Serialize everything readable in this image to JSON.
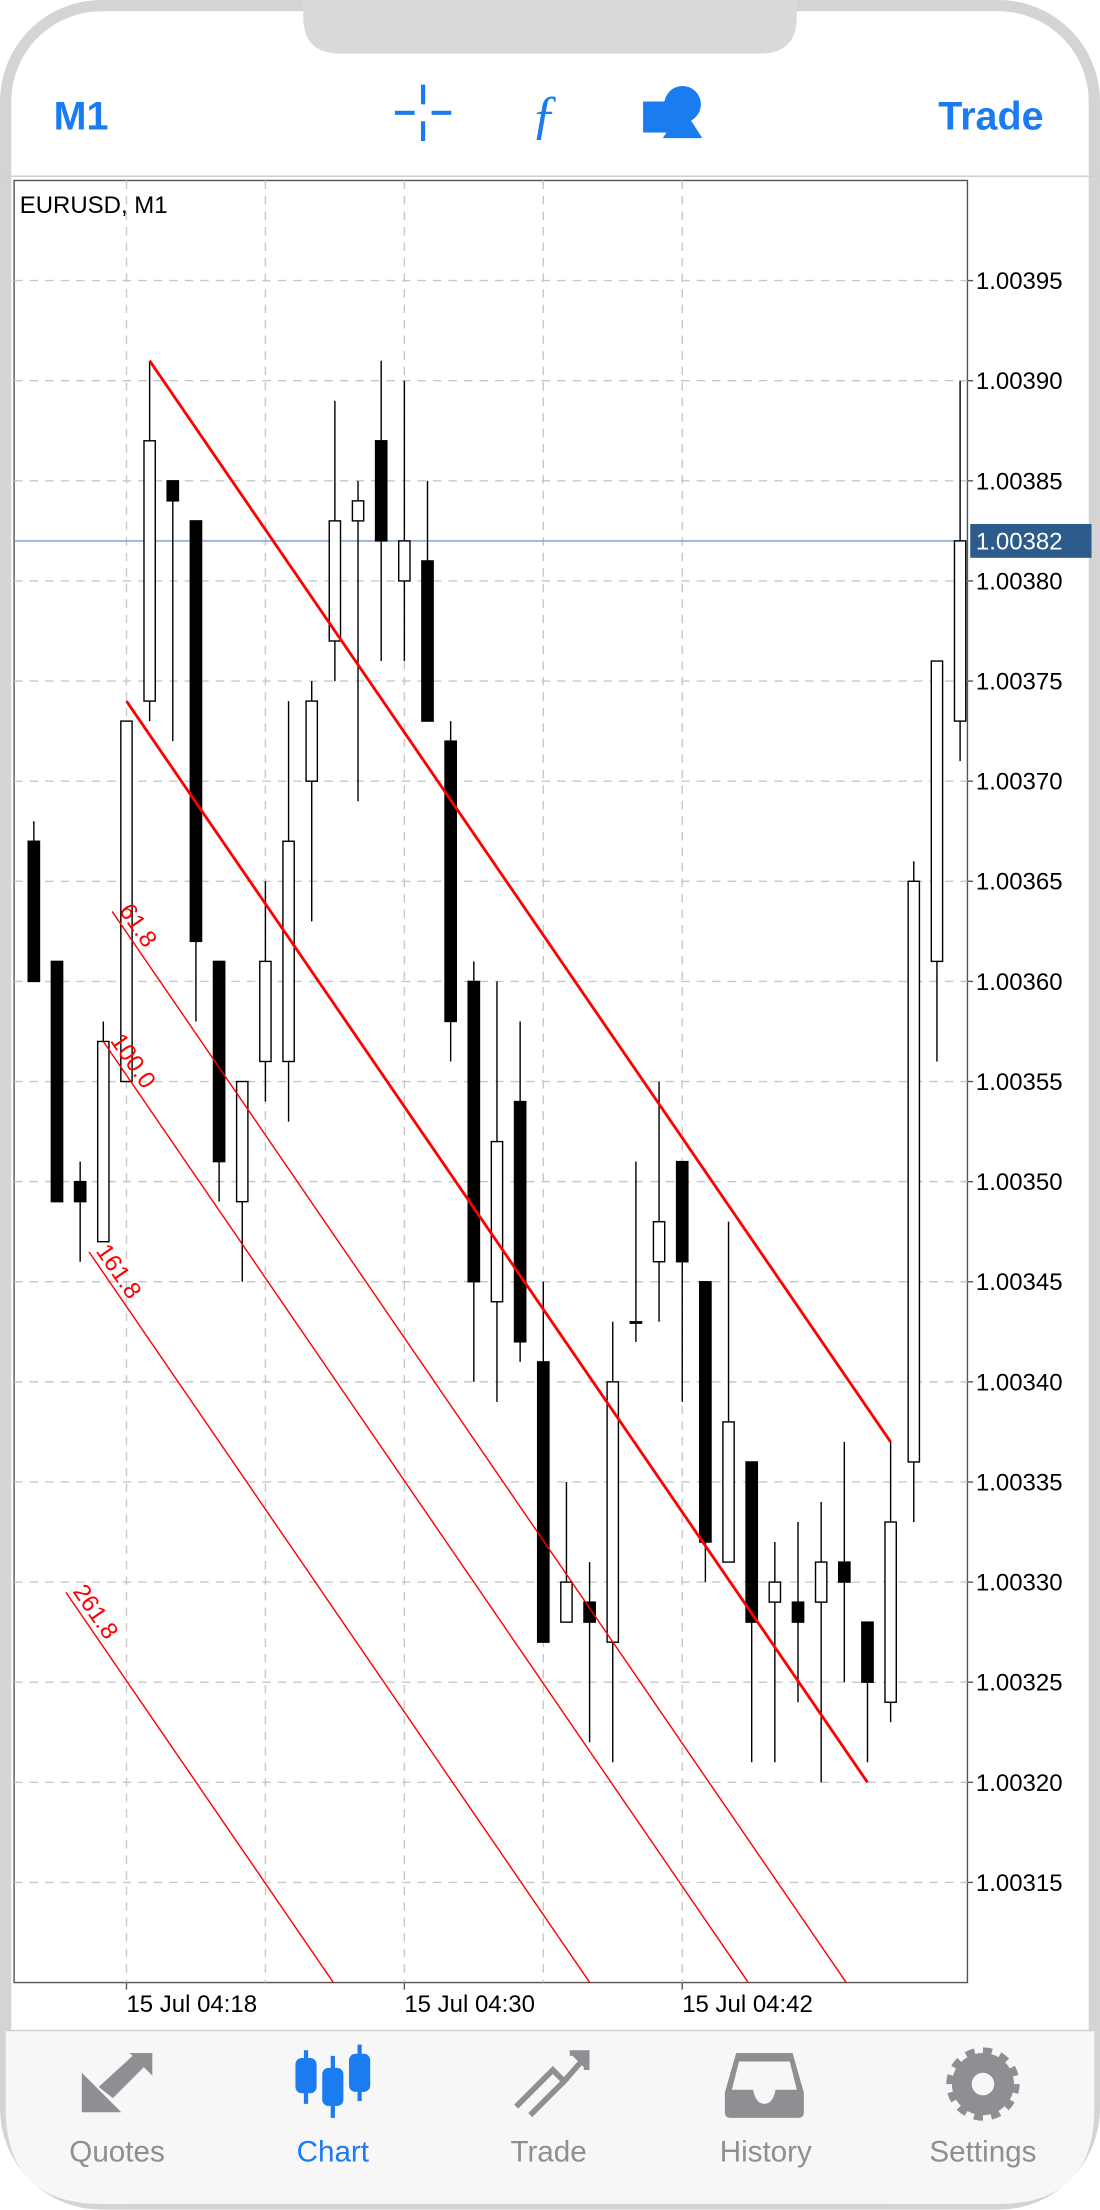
{
  "header": {
    "left": "M1",
    "right": "Trade"
  },
  "chart_data": {
    "type": "candlestick",
    "title": "EURUSD, M1",
    "categories": [
      null,
      null,
      null,
      null,
      "15 Jul 04:18",
      null,
      null,
      null,
      null,
      null,
      null,
      null,
      null,
      null,
      null,
      null,
      "15 Jul 04:30",
      null,
      null,
      null,
      null,
      null,
      null,
      null,
      null,
      null,
      null,
      null,
      "15 Jul 04:42",
      null,
      null,
      null,
      null,
      null,
      null,
      null,
      null,
      null,
      null,
      null,
      null
    ],
    "open": [
      1.00367,
      1.00361,
      1.0035,
      1.00347,
      1.00355,
      1.00374,
      1.00385,
      1.00383,
      1.00361,
      1.00349,
      1.00356,
      1.00356,
      1.0037,
      1.00377,
      1.00383,
      1.00387,
      1.0038,
      1.00381,
      1.00372,
      1.0036,
      1.00344,
      1.00354,
      1.00341,
      1.00328,
      1.00329,
      1.00327,
      1.00343,
      1.00346,
      1.00351,
      1.00345,
      1.00331,
      1.00336,
      1.00329,
      1.00329,
      1.00329,
      1.00331,
      1.00328,
      1.00324,
      1.00336,
      1.00361,
      1.00373
    ],
    "high": [
      1.00368,
      1.00361,
      1.00351,
      1.00358,
      1.00373,
      1.00391,
      1.00385,
      1.00383,
      1.00361,
      1.00355,
      1.00365,
      1.00374,
      1.00375,
      1.00389,
      1.00385,
      1.00391,
      1.0039,
      1.00385,
      1.00373,
      1.00361,
      1.0036,
      1.00358,
      1.00345,
      1.00335,
      1.00331,
      1.00343,
      1.00351,
      1.00355,
      1.00351,
      1.00345,
      1.00348,
      1.00336,
      1.00332,
      1.00333,
      1.00334,
      1.00337,
      1.00328,
      1.00337,
      1.00366,
      1.00376,
      1.0039
    ],
    "low": [
      1.0036,
      1.00349,
      1.00346,
      1.00347,
      1.00355,
      1.00373,
      1.00372,
      1.00358,
      1.00349,
      1.00345,
      1.00354,
      1.00353,
      1.00363,
      1.00375,
      1.00369,
      1.00376,
      1.00376,
      1.00373,
      1.00356,
      1.0034,
      1.00339,
      1.00341,
      1.00327,
      1.00328,
      1.00322,
      1.00321,
      1.00342,
      1.00343,
      1.00339,
      1.0033,
      1.00331,
      1.00321,
      1.00321,
      1.00324,
      1.0032,
      1.00325,
      1.00321,
      1.00323,
      1.00333,
      1.00356,
      1.00371
    ],
    "close": [
      1.0036,
      1.00349,
      1.00349,
      1.00357,
      1.00373,
      1.00387,
      1.00384,
      1.00362,
      1.00351,
      1.00355,
      1.00361,
      1.00367,
      1.00374,
      1.00383,
      1.00384,
      1.00382,
      1.00382,
      1.00373,
      1.00358,
      1.00345,
      1.00352,
      1.00342,
      1.00327,
      1.0033,
      1.00328,
      1.0034,
      1.00343,
      1.00348,
      1.00346,
      1.00332,
      1.00338,
      1.00328,
      1.0033,
      1.00328,
      1.00331,
      1.0033,
      1.00325,
      1.00333,
      1.00365,
      1.00376,
      1.00382
    ],
    "up_color": "#ffffff",
    "down_color": "#000000",
    "ylim": [
      1.0031,
      1.004
    ],
    "yticks": [
      1.00315,
      {
        "value": 1.0032,
        "label": "1.00320"
      },
      1.00325,
      {
        "value": 1.0033,
        "label": "1.00330"
      },
      1.00335,
      {
        "value": 1.0034,
        "label": "1.00340"
      },
      1.00345,
      {
        "value": 1.0035,
        "label": "1.00350"
      },
      1.00355,
      {
        "value": 1.0036,
        "label": "1.00360"
      },
      1.00365,
      {
        "value": 1.0037,
        "label": "1.00370"
      },
      1.00375,
      {
        "value": 1.0038,
        "label": "1.00380"
      },
      1.00385,
      {
        "value": 1.0039,
        "label": "1.00390"
      },
      1.00395
    ],
    "grid": true,
    "current_price": 1.00382,
    "fibo_channel": {
      "color": "#ff0000",
      "upper": [
        [
          5,
          1.00391
        ],
        [
          37,
          1.00337
        ]
      ],
      "lower": [
        [
          4,
          1.00374
        ],
        [
          36,
          1.0032
        ]
      ],
      "levels": [
        61.8,
        100,
        161.8,
        261.8
      ],
      "level_labels": [
        "61.8",
        "100.0",
        "161.8",
        "261.8"
      ]
    }
  },
  "tabs": [
    {
      "label": "Quotes",
      "color": "#8e8e93"
    },
    {
      "label": "Chart",
      "color": "#1a7cf0"
    },
    {
      "label": "Trade",
      "color": "#8e8e93"
    },
    {
      "label": "History",
      "color": "#8e8e93"
    },
    {
      "label": "Settings",
      "color": "#8e8e93"
    }
  ]
}
